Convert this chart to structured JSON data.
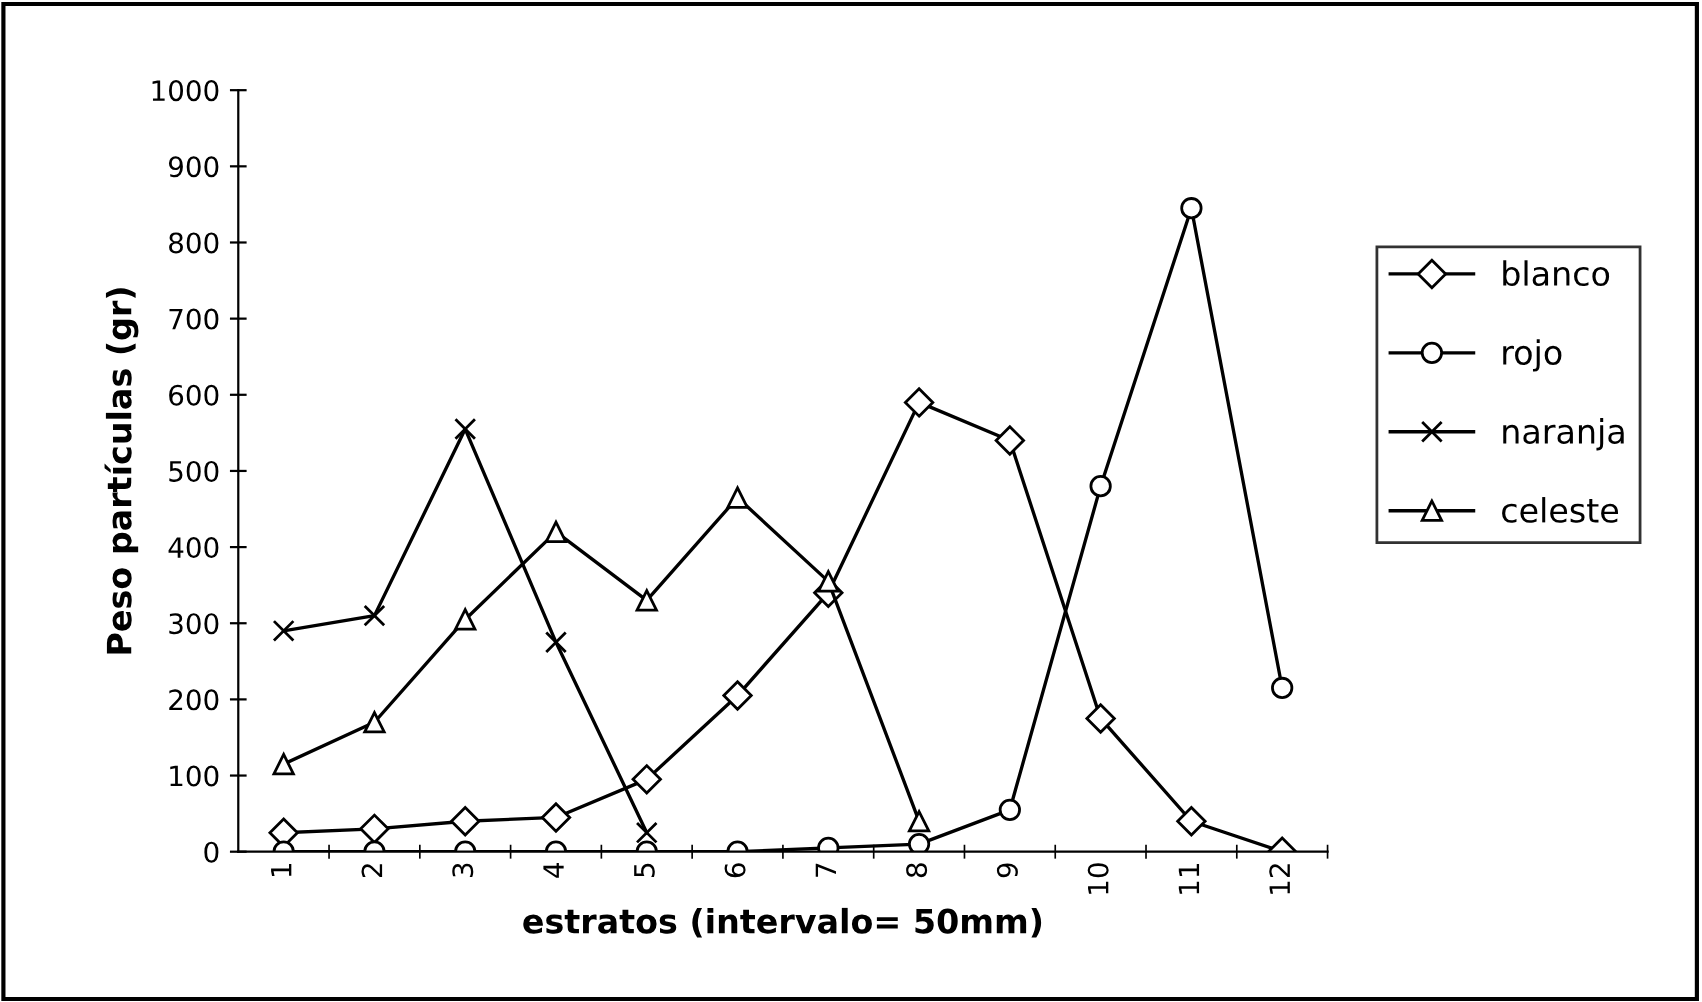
{
  "chart_data": {
    "type": "line",
    "xlabel": "estratos (intervalo= 50mm)",
    "ylabel": "Peso partículas (gr)",
    "categories": [
      "1",
      "2",
      "3",
      "4",
      "5",
      "6",
      "7",
      "8",
      "9",
      "10",
      "11",
      "12"
    ],
    "ylim": [
      0,
      1000
    ],
    "yticks": [
      0,
      100,
      200,
      300,
      400,
      500,
      600,
      700,
      800,
      900,
      1000
    ],
    "grid": false,
    "legend": "right",
    "line_style": "solid",
    "series": [
      {
        "name": "blanco",
        "color": "#000000",
        "marker": "diamond",
        "values": [
          25,
          30,
          40,
          45,
          95,
          205,
          340,
          590,
          540,
          175,
          40,
          0
        ]
      },
      {
        "name": "rojo",
        "color": "#000000",
        "marker": "circle",
        "values": [
          0,
          0,
          0,
          0,
          0,
          0,
          5,
          10,
          55,
          480,
          845,
          215
        ]
      },
      {
        "name": "naranja",
        "color": "#000000",
        "marker": "cross",
        "values": [
          290,
          310,
          555,
          275,
          25,
          null,
          null,
          null,
          null,
          null,
          null,
          null
        ]
      },
      {
        "name": "celeste",
        "color": "#000000",
        "marker": "triangle",
        "values": [
          115,
          170,
          305,
          420,
          330,
          465,
          355,
          40,
          null,
          null,
          null,
          null
        ]
      }
    ]
  }
}
